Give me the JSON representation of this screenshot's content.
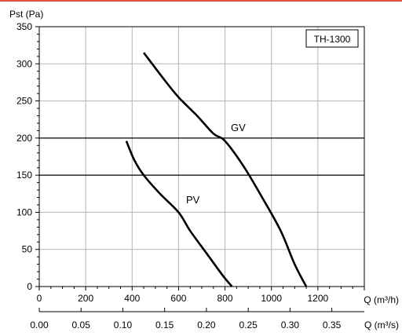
{
  "colors": {
    "frame_accent": "#e0523a",
    "curve": "#000000",
    "grid": "#000000"
  },
  "chart_data": {
    "type": "line",
    "title": "",
    "model_badge": "TH-1300",
    "ylabel": "Pst (Pa)",
    "xlabel": "Q (m³/h)",
    "x2label": "Q (m³/s)",
    "xlim": [
      0,
      1400
    ],
    "ylim": [
      0,
      350
    ],
    "x_ticks": [
      0,
      200,
      400,
      600,
      800,
      1000,
      1200
    ],
    "x_tick_labels": [
      "0",
      "200",
      "400",
      "600",
      "800",
      "1000",
      "1200"
    ],
    "y_ticks": [
      0,
      50,
      100,
      150,
      200,
      250,
      300,
      350
    ],
    "y_tick_labels": [
      "0",
      "50",
      "100",
      "150",
      "200",
      "250",
      "300",
      "350"
    ],
    "x2_ticks": [
      0,
      0.05,
      0.1,
      0.15,
      0.2,
      0.25,
      0.3,
      0.35
    ],
    "x2_tick_labels": [
      "0.00",
      "0.05",
      "0.10",
      "0.15",
      "0.20",
      "0.25",
      "0.30",
      "0.35"
    ],
    "grid": true,
    "highlight_lines_y": [
      150,
      200
    ],
    "series": [
      {
        "name": "GV",
        "points": [
          [
            450,
            315
          ],
          [
            530,
            282
          ],
          [
            600,
            255
          ],
          [
            680,
            230
          ],
          [
            750,
            206
          ],
          [
            800,
            196
          ],
          [
            880,
            162
          ],
          [
            960,
            120
          ],
          [
            1040,
            75
          ],
          [
            1100,
            30
          ],
          [
            1150,
            0
          ]
        ]
      },
      {
        "name": "PV",
        "points": [
          [
            375,
            196
          ],
          [
            410,
            170
          ],
          [
            450,
            150
          ],
          [
            520,
            125
          ],
          [
            600,
            100
          ],
          [
            650,
            75
          ],
          [
            720,
            45
          ],
          [
            790,
            15
          ],
          [
            830,
            0
          ]
        ]
      }
    ]
  }
}
